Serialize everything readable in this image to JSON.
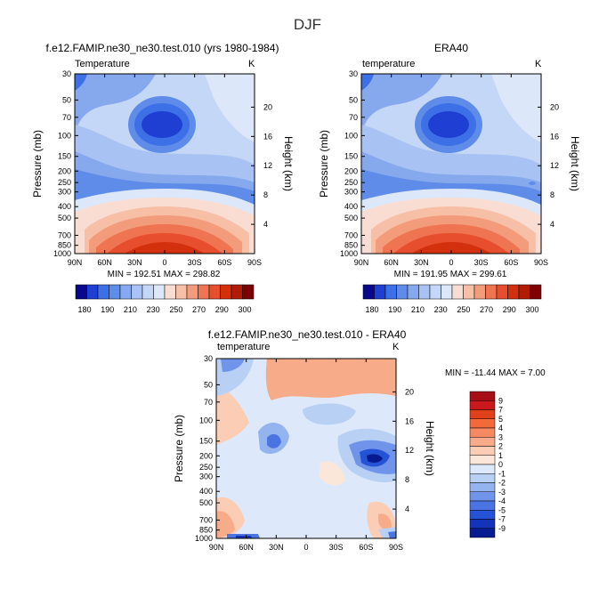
{
  "main_title": "DJF",
  "panels": [
    {
      "title": "f.e12.FAMIP.ne30_ne30.test.010 (yrs 1980-1984)",
      "left_label": "Temperature",
      "right_label": "K",
      "stats": "MIN = 192.51   MAX = 298.82"
    },
    {
      "title": "ERA40",
      "left_label": "temperature",
      "right_label": "K",
      "stats": "MIN = 191.95   MAX = 299.61"
    },
    {
      "title": "f.e12.FAMIP.ne30_ne30.test.010 - ERA40",
      "left_label": "temperature",
      "right_label": "K",
      "stats": "MIN = -11.44   MAX =    7.00"
    }
  ],
  "chart_data": [
    {
      "type": "heatmap",
      "title": "f.e12.FAMIP.ne30_ne30.test.010 (yrs 1980-1984)",
      "ylabel": "Pressure (mb)",
      "ylabel_right": "Height (km)",
      "x_ticks": [
        "90N",
        "60N",
        "30N",
        "0",
        "30S",
        "60S",
        "90S"
      ],
      "y_ticks": [
        "30",
        "50",
        "70",
        "100",
        "150",
        "200",
        "250",
        "300",
        "400",
        "500",
        "700",
        "850",
        "1000"
      ],
      "y_ticks_right": [
        "20",
        "16",
        "12",
        "8",
        "4"
      ],
      "colorbar": {
        "levels": [
          "180",
          "190",
          "210",
          "230",
          "250",
          "270",
          "290",
          "300"
        ],
        "colors": [
          "#08088c",
          "#1e3fd2",
          "#3d6fe6",
          "#5e8ce8",
          "#86a9ee",
          "#a7c2f3",
          "#c4d7f7",
          "#dce8fa",
          "#f9ddd2",
          "#f7bfa6",
          "#f39c7c",
          "#ee7452",
          "#e64e2e",
          "#d3300e",
          "#b01c08",
          "#7f0000"
        ]
      },
      "min": 192.51,
      "max": 298.82
    },
    {
      "type": "heatmap",
      "title": "ERA40",
      "ylabel": "Pressure (mb)",
      "ylabel_right": "Height (km)",
      "x_ticks": [
        "90N",
        "60N",
        "30N",
        "0",
        "30S",
        "60S",
        "90S"
      ],
      "y_ticks": [
        "30",
        "50",
        "70",
        "100",
        "150",
        "200",
        "250",
        "300",
        "400",
        "500",
        "700",
        "850",
        "1000"
      ],
      "y_ticks_right": [
        "20",
        "16",
        "12",
        "8",
        "4"
      ],
      "min": 191.95,
      "max": 299.61
    },
    {
      "type": "heatmap",
      "title": "f.e12.FAMIP.ne30_ne30.test.010 - ERA40",
      "ylabel": "Pressure (mb)",
      "ylabel_right": "Height (km)",
      "x_ticks": [
        "90N",
        "60N",
        "30N",
        "0",
        "30S",
        "60S",
        "90S"
      ],
      "y_ticks": [
        "30",
        "50",
        "70",
        "100",
        "150",
        "200",
        "250",
        "300",
        "400",
        "500",
        "700",
        "850",
        "1000"
      ],
      "y_ticks_right": [
        "20",
        "16",
        "12",
        "8",
        "4"
      ],
      "colorbar": {
        "levels": [
          "9",
          "7",
          "5",
          "4",
          "3",
          "2",
          "1",
          "0",
          "-1",
          "-2",
          "-3",
          "-4",
          "-5",
          "-7",
          "-9"
        ],
        "colors": [
          "#a50f15",
          "#cb181d",
          "#e0401a",
          "#f26a3c",
          "#f58a62",
          "#f8ab88",
          "#fbcdb5",
          "#fbe6da",
          "#dde9fa",
          "#b9d0f5",
          "#93b4ef",
          "#6f94ea",
          "#4b74e3",
          "#2553d6",
          "#1333b8",
          "#061b8f"
        ]
      },
      "min": -11.44,
      "max": 7.0
    }
  ]
}
